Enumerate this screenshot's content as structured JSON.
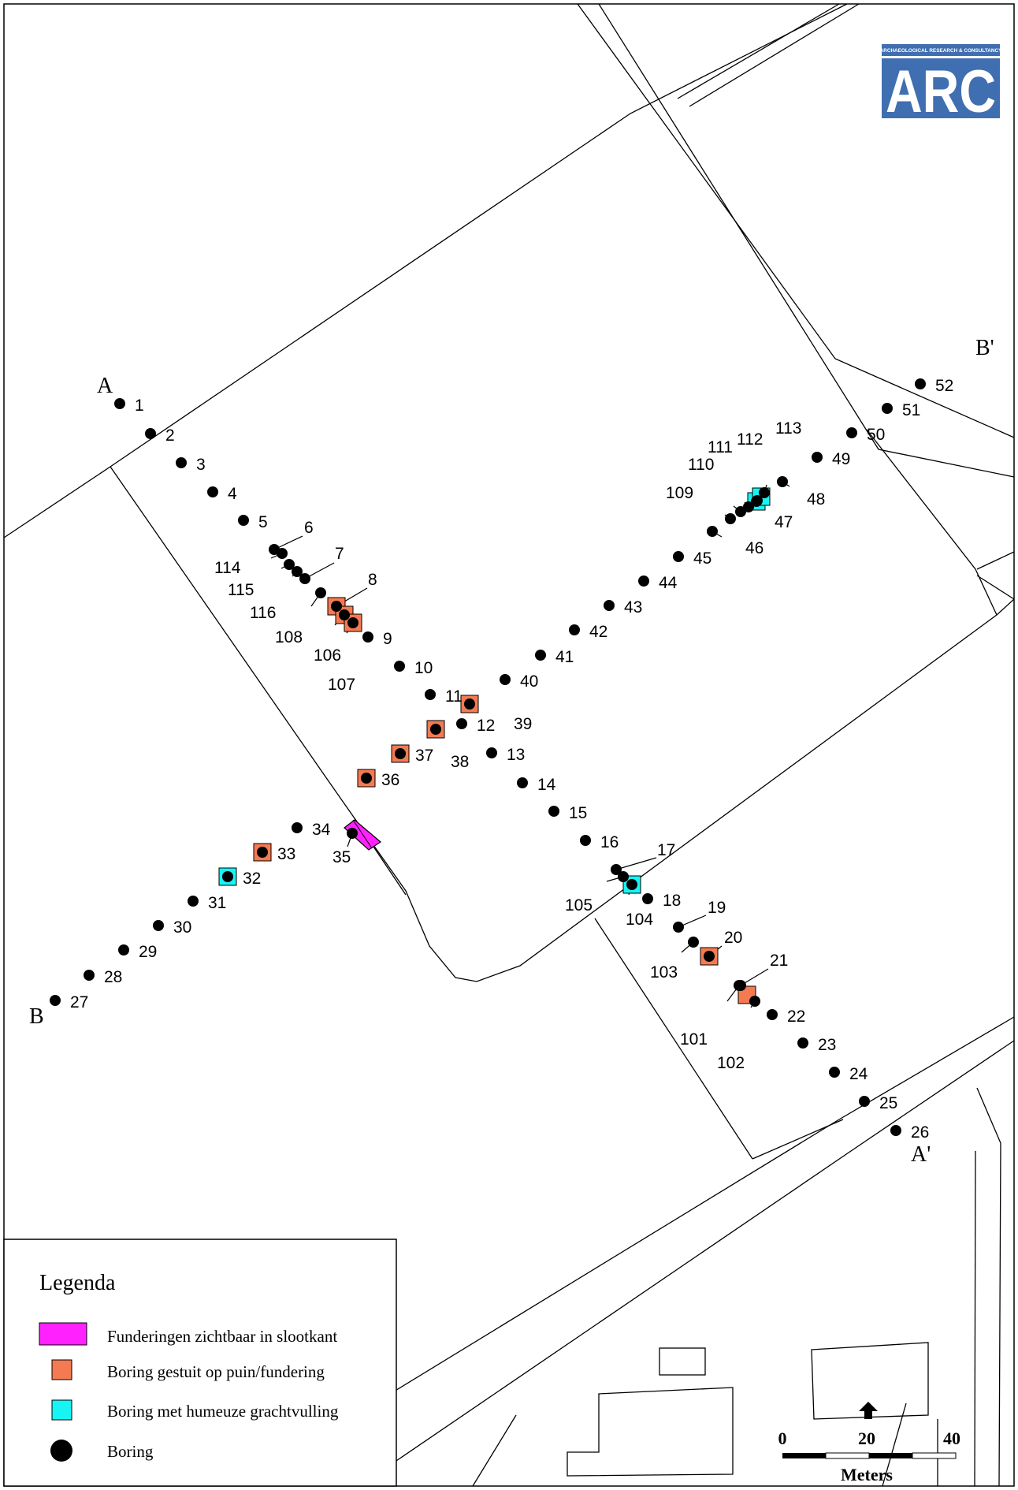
{
  "logo": {
    "tagline": "ARCHAEOLOGICAL RESEARCH & CONSULTANCY",
    "name": "ARC",
    "color": "#3f6fb0"
  },
  "section_labels": [
    "A",
    "A'",
    "B",
    "B'"
  ],
  "legend": {
    "title": "Legenda",
    "items": [
      {
        "id": "foundation",
        "label": "Funderingen zichtbaar in slootkant",
        "color": "#ff22ff"
      },
      {
        "id": "rubble",
        "label": "Boring gestuit op puin/fundering",
        "color": "#f47a52"
      },
      {
        "id": "humic",
        "label": "Boring met humeuze grachtvulling",
        "color": "#17f4f4"
      },
      {
        "id": "boring",
        "label": "Boring",
        "color": "#000000"
      }
    ]
  },
  "scale_bar": {
    "ticks": [
      "0",
      "20",
      "40"
    ],
    "unit": "Meters"
  },
  "borings": [
    {
      "id": "1",
      "type": "boring"
    },
    {
      "id": "2",
      "type": "boring"
    },
    {
      "id": "3",
      "type": "boring"
    },
    {
      "id": "4",
      "type": "boring"
    },
    {
      "id": "5",
      "type": "boring"
    },
    {
      "id": "6",
      "type": "boring"
    },
    {
      "id": "7",
      "type": "boring"
    },
    {
      "id": "8",
      "type": "rubble"
    },
    {
      "id": "9",
      "type": "boring"
    },
    {
      "id": "10",
      "type": "boring"
    },
    {
      "id": "11",
      "type": "boring"
    },
    {
      "id": "12",
      "type": "boring"
    },
    {
      "id": "13",
      "type": "boring"
    },
    {
      "id": "14",
      "type": "boring"
    },
    {
      "id": "15",
      "type": "boring"
    },
    {
      "id": "16",
      "type": "boring"
    },
    {
      "id": "17",
      "type": "boring"
    },
    {
      "id": "18",
      "type": "boring"
    },
    {
      "id": "19",
      "type": "boring"
    },
    {
      "id": "20",
      "type": "rubble"
    },
    {
      "id": "21",
      "type": "boring"
    },
    {
      "id": "22",
      "type": "boring"
    },
    {
      "id": "23",
      "type": "boring"
    },
    {
      "id": "24",
      "type": "boring"
    },
    {
      "id": "25",
      "type": "boring"
    },
    {
      "id": "26",
      "type": "boring"
    },
    {
      "id": "27",
      "type": "boring"
    },
    {
      "id": "28",
      "type": "boring"
    },
    {
      "id": "29",
      "type": "boring"
    },
    {
      "id": "30",
      "type": "boring"
    },
    {
      "id": "31",
      "type": "boring"
    },
    {
      "id": "32",
      "type": "humic"
    },
    {
      "id": "33",
      "type": "rubble"
    },
    {
      "id": "34",
      "type": "boring"
    },
    {
      "id": "35",
      "type": "boring"
    },
    {
      "id": "36",
      "type": "rubble"
    },
    {
      "id": "37",
      "type": "rubble"
    },
    {
      "id": "38",
      "type": "rubble"
    },
    {
      "id": "39",
      "type": "rubble"
    },
    {
      "id": "40",
      "type": "boring"
    },
    {
      "id": "41",
      "type": "boring"
    },
    {
      "id": "42",
      "type": "boring"
    },
    {
      "id": "43",
      "type": "boring"
    },
    {
      "id": "44",
      "type": "boring"
    },
    {
      "id": "45",
      "type": "boring"
    },
    {
      "id": "46",
      "type": "boring"
    },
    {
      "id": "47",
      "type": "humic"
    },
    {
      "id": "48",
      "type": "boring"
    },
    {
      "id": "49",
      "type": "boring"
    },
    {
      "id": "50",
      "type": "boring"
    },
    {
      "id": "51",
      "type": "boring"
    },
    {
      "id": "52",
      "type": "boring"
    },
    {
      "id": "101",
      "type": "boring"
    },
    {
      "id": "102",
      "type": "rubble"
    },
    {
      "id": "103",
      "type": "boring"
    },
    {
      "id": "104",
      "type": "humic"
    },
    {
      "id": "105",
      "type": "boring"
    },
    {
      "id": "106",
      "type": "rubble"
    },
    {
      "id": "107",
      "type": "rubble"
    },
    {
      "id": "108",
      "type": "boring"
    },
    {
      "id": "109",
      "type": "boring"
    },
    {
      "id": "110",
      "type": "boring"
    },
    {
      "id": "111",
      "type": "boring"
    },
    {
      "id": "112",
      "type": "humic"
    },
    {
      "id": "113",
      "type": "boring"
    },
    {
      "id": "114",
      "type": "boring"
    },
    {
      "id": "115",
      "type": "boring"
    },
    {
      "id": "116",
      "type": "boring"
    }
  ]
}
